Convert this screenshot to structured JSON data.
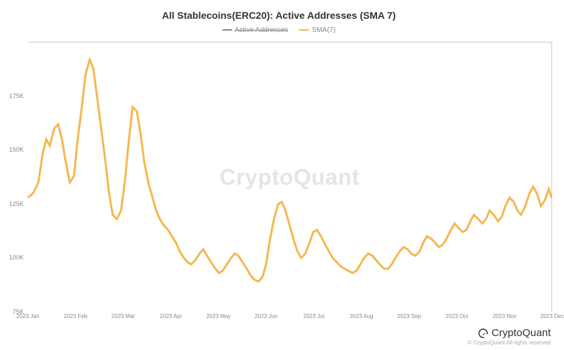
{
  "chart": {
    "type": "line",
    "title": "All Stablecoins(ERC20): Active Addresses (SMA 7)",
    "title_fontsize": 14,
    "title_color": "#333333",
    "background_color": "#ffffff",
    "watermark_text": "CryptoQuant",
    "watermark_color": "#e5e5e5",
    "legend": {
      "items": [
        {
          "label": "Active Addresses",
          "color": "#888888",
          "strike": true
        },
        {
          "label": "SMA(7)",
          "color": "#f5b74f",
          "strike": false
        }
      ]
    },
    "y_axis": {
      "min": 75000,
      "max": 200000,
      "ticks": [
        {
          "value": 75000,
          "label": "75K"
        },
        {
          "value": 100000,
          "label": "100K"
        },
        {
          "value": 125000,
          "label": "125K"
        },
        {
          "value": 150000,
          "label": "150K"
        },
        {
          "value": 175000,
          "label": "175K"
        }
      ],
      "label_fontsize": 9,
      "label_color": "#888888"
    },
    "x_axis": {
      "ticks": [
        {
          "pos": 0.0,
          "label": "2023 Jan"
        },
        {
          "pos": 0.0909,
          "label": "2023 Feb"
        },
        {
          "pos": 0.1818,
          "label": "2023 Mar"
        },
        {
          "pos": 0.2727,
          "label": "2023 Apr"
        },
        {
          "pos": 0.3636,
          "label": "2023 May"
        },
        {
          "pos": 0.4545,
          "label": "2023 Jun"
        },
        {
          "pos": 0.5455,
          "label": "2023 Jul"
        },
        {
          "pos": 0.6364,
          "label": "2023 Aug"
        },
        {
          "pos": 0.7273,
          "label": "2023 Sep"
        },
        {
          "pos": 0.8182,
          "label": "2023 Oct"
        },
        {
          "pos": 0.9091,
          "label": "2023 Nov"
        },
        {
          "pos": 1.0,
          "label": "2023 Dec"
        }
      ],
      "label_fontsize": 8,
      "label_color": "#888888"
    },
    "series": [
      {
        "name": "SMA(7)",
        "color": "#f5b74f",
        "line_width": 1.2,
        "points": [
          [
            0.0,
            128000
          ],
          [
            0.01,
            130000
          ],
          [
            0.02,
            135000
          ],
          [
            0.028,
            148000
          ],
          [
            0.035,
            155000
          ],
          [
            0.042,
            152000
          ],
          [
            0.05,
            160000
          ],
          [
            0.058,
            162000
          ],
          [
            0.065,
            155000
          ],
          [
            0.072,
            145000
          ],
          [
            0.08,
            135000
          ],
          [
            0.088,
            138000
          ],
          [
            0.095,
            155000
          ],
          [
            0.103,
            170000
          ],
          [
            0.11,
            185000
          ],
          [
            0.118,
            192000
          ],
          [
            0.125,
            188000
          ],
          [
            0.132,
            175000
          ],
          [
            0.14,
            160000
          ],
          [
            0.148,
            145000
          ],
          [
            0.155,
            130000
          ],
          [
            0.162,
            120000
          ],
          [
            0.17,
            118000
          ],
          [
            0.178,
            122000
          ],
          [
            0.185,
            135000
          ],
          [
            0.193,
            155000
          ],
          [
            0.2,
            170000
          ],
          [
            0.208,
            168000
          ],
          [
            0.215,
            158000
          ],
          [
            0.222,
            145000
          ],
          [
            0.23,
            135000
          ],
          [
            0.238,
            128000
          ],
          [
            0.245,
            122000
          ],
          [
            0.252,
            118000
          ],
          [
            0.26,
            115000
          ],
          [
            0.268,
            113000
          ],
          [
            0.275,
            110000
          ],
          [
            0.283,
            107000
          ],
          [
            0.29,
            103000
          ],
          [
            0.298,
            100000
          ],
          [
            0.305,
            98000
          ],
          [
            0.312,
            97000
          ],
          [
            0.32,
            99000
          ],
          [
            0.328,
            102000
          ],
          [
            0.335,
            104000
          ],
          [
            0.342,
            101000
          ],
          [
            0.35,
            98000
          ],
          [
            0.358,
            95000
          ],
          [
            0.365,
            93000
          ],
          [
            0.372,
            94000
          ],
          [
            0.38,
            97000
          ],
          [
            0.388,
            100000
          ],
          [
            0.395,
            102000
          ],
          [
            0.402,
            101000
          ],
          [
            0.41,
            98000
          ],
          [
            0.418,
            95000
          ],
          [
            0.425,
            92000
          ],
          [
            0.432,
            90000
          ],
          [
            0.44,
            89000
          ],
          [
            0.448,
            91000
          ],
          [
            0.455,
            97000
          ],
          [
            0.462,
            108000
          ],
          [
            0.47,
            118000
          ],
          [
            0.478,
            125000
          ],
          [
            0.485,
            126000
          ],
          [
            0.492,
            122000
          ],
          [
            0.5,
            115000
          ],
          [
            0.508,
            108000
          ],
          [
            0.515,
            103000
          ],
          [
            0.522,
            100000
          ],
          [
            0.53,
            102000
          ],
          [
            0.538,
            107000
          ],
          [
            0.545,
            112000
          ],
          [
            0.552,
            113000
          ],
          [
            0.56,
            110000
          ],
          [
            0.568,
            106000
          ],
          [
            0.575,
            103000
          ],
          [
            0.582,
            100000
          ],
          [
            0.59,
            98000
          ],
          [
            0.598,
            96000
          ],
          [
            0.605,
            95000
          ],
          [
            0.612,
            94000
          ],
          [
            0.62,
            93000
          ],
          [
            0.628,
            94000
          ],
          [
            0.635,
            97000
          ],
          [
            0.642,
            100000
          ],
          [
            0.65,
            102000
          ],
          [
            0.658,
            101000
          ],
          [
            0.665,
            99000
          ],
          [
            0.672,
            97000
          ],
          [
            0.68,
            95000
          ],
          [
            0.688,
            95000
          ],
          [
            0.695,
            97000
          ],
          [
            0.702,
            100000
          ],
          [
            0.71,
            103000
          ],
          [
            0.718,
            105000
          ],
          [
            0.725,
            104000
          ],
          [
            0.732,
            102000
          ],
          [
            0.74,
            101000
          ],
          [
            0.748,
            103000
          ],
          [
            0.755,
            107000
          ],
          [
            0.762,
            110000
          ],
          [
            0.77,
            109000
          ],
          [
            0.778,
            107000
          ],
          [
            0.785,
            105000
          ],
          [
            0.792,
            106000
          ],
          [
            0.8,
            109000
          ],
          [
            0.808,
            113000
          ],
          [
            0.815,
            116000
          ],
          [
            0.822,
            114000
          ],
          [
            0.83,
            112000
          ],
          [
            0.838,
            113000
          ],
          [
            0.845,
            117000
          ],
          [
            0.852,
            120000
          ],
          [
            0.86,
            118000
          ],
          [
            0.868,
            116000
          ],
          [
            0.875,
            118000
          ],
          [
            0.882,
            122000
          ],
          [
            0.89,
            120000
          ],
          [
            0.898,
            117000
          ],
          [
            0.905,
            119000
          ],
          [
            0.912,
            124000
          ],
          [
            0.92,
            128000
          ],
          [
            0.928,
            126000
          ],
          [
            0.935,
            122000
          ],
          [
            0.942,
            120000
          ],
          [
            0.95,
            124000
          ],
          [
            0.958,
            130000
          ],
          [
            0.965,
            133000
          ],
          [
            0.972,
            130000
          ],
          [
            0.98,
            124000
          ],
          [
            0.988,
            127000
          ],
          [
            0.995,
            132000
          ],
          [
            1.0,
            128000
          ]
        ]
      }
    ],
    "border_color": "#cccccc"
  },
  "footer": {
    "brand": "CryptoQuant",
    "copyright": "© CryptoQuant All rights reserved"
  }
}
